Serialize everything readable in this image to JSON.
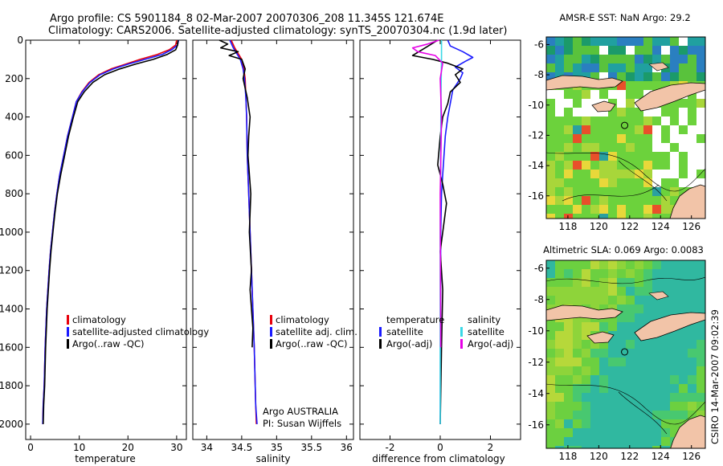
{
  "title": {
    "line1": "Argo profile: CS 5901184_8 02-Mar-2007 20070306_208 11.345S 121.674E",
    "line2": "Climatology: CARS2006. Satellite-adjusted climatology: synTS_20070304.nc (1.9d later)"
  },
  "side_label": "CSIRO 14-Mar-2007 09:02:39",
  "colors": {
    "red": "#e8000b",
    "blue": "#1a1aff",
    "black": "#000000",
    "cyan": "#3ad8e6",
    "magenta": "#e600e6"
  },
  "chart_data": [
    {
      "type": "line",
      "xlabel": "temperature",
      "xlim": [
        -1,
        32
      ],
      "ylim": [
        2080,
        0
      ],
      "xticks": [
        "0",
        "10",
        "20",
        "30"
      ],
      "xtick_values": [
        0,
        10,
        20,
        30
      ],
      "yticks": [
        "0",
        "200",
        "400",
        "600",
        "800",
        "1000",
        "1200",
        "1400",
        "1600",
        "1800",
        "2000"
      ],
      "ytick_values": [
        0,
        200,
        400,
        600,
        800,
        1000,
        1200,
        1400,
        1600,
        1800,
        2000
      ],
      "legend": [
        "climatology",
        "satellite-adjusted climatology",
        "Argo(..raw -QC)"
      ],
      "series": [
        {
          "name": "climatology",
          "color": "red",
          "x": [
            30,
            29.8,
            28.5,
            26,
            22.5,
            19.5,
            16.5,
            14,
            12,
            10.5,
            9.4,
            8.6,
            7.6,
            6.8,
            6.0,
            5.4,
            4.9,
            4.5,
            4.1,
            3.8,
            3.3,
            3.0,
            2.8,
            2.6,
            2.5
          ],
          "y": [
            0,
            25,
            50,
            75,
            100,
            125,
            150,
            180,
            220,
            270,
            320,
            400,
            500,
            600,
            700,
            800,
            900,
            1000,
            1100,
            1200,
            1400,
            1600,
            1800,
            1900,
            2000
          ]
        },
        {
          "name": "satellite-adjusted climatology",
          "color": "blue",
          "x": [
            30.4,
            30.2,
            29,
            27,
            23.5,
            20,
            17,
            14.3,
            12.2,
            10.6,
            9.4,
            8.6,
            7.6,
            6.8,
            6.0,
            5.4,
            4.9,
            4.5,
            4.1,
            3.8,
            3.3,
            3.0,
            2.8,
            2.6,
            2.5
          ],
          "y": [
            0,
            25,
            50,
            75,
            100,
            125,
            150,
            180,
            220,
            270,
            320,
            400,
            500,
            600,
            700,
            800,
            900,
            1000,
            1100,
            1200,
            1400,
            1600,
            1800,
            1900,
            2000
          ]
        },
        {
          "name": "Argo(..raw -QC)",
          "color": "black",
          "x": [
            30.3,
            30.2,
            29.8,
            28,
            25.2,
            21.5,
            18.3,
            15.2,
            12.8,
            11.0,
            9.7,
            8.8,
            7.8,
            7.0,
            6.2,
            5.5,
            5.0,
            4.6,
            4.2,
            3.9,
            3.4,
            3.1,
            2.9,
            2.7,
            2.6
          ],
          "y": [
            0,
            25,
            50,
            75,
            100,
            125,
            150,
            180,
            220,
            270,
            320,
            400,
            500,
            600,
            700,
            800,
            900,
            1000,
            1100,
            1200,
            1400,
            1600,
            1800,
            1900,
            2000
          ]
        }
      ]
    },
    {
      "type": "line",
      "xlabel": "salinity",
      "xlim": [
        33.8,
        36.1
      ],
      "ylim": [
        2080,
        0
      ],
      "xticks": [
        "34",
        "34.5",
        "35",
        "35.5",
        "36"
      ],
      "xtick_values": [
        34,
        34.5,
        35,
        35.5,
        36
      ],
      "legend": [
        "climatology",
        "satellite adj. clim.",
        "Argo(..raw -QC)"
      ],
      "annotations": [
        "Argo AUSTRALIA",
        "PI: Susan Wijffels"
      ],
      "series": [
        {
          "name": "climatology",
          "color": "red",
          "x": [
            34.35,
            34.4,
            34.45,
            34.5,
            34.53,
            34.55,
            34.56,
            34.57,
            34.58,
            34.6,
            34.62,
            34.65,
            34.68,
            34.7,
            34.71
          ],
          "y": [
            0,
            40,
            70,
            100,
            150,
            200,
            300,
            400,
            600,
            800,
            1000,
            1300,
            1600,
            1900,
            2000
          ]
        },
        {
          "name": "satellite adj. clim.",
          "color": "blue",
          "x": [
            34.33,
            34.38,
            34.43,
            34.48,
            34.52,
            34.54,
            34.56,
            34.57,
            34.58,
            34.6,
            34.62,
            34.65,
            34.68,
            34.7,
            34.72
          ],
          "y": [
            0,
            40,
            70,
            100,
            150,
            200,
            300,
            400,
            600,
            800,
            1000,
            1300,
            1600,
            1900,
            2000
          ]
        },
        {
          "name": "Argo(..raw -QC)",
          "color": "black",
          "x": [
            34.18,
            34.3,
            34.2,
            34.45,
            34.32,
            34.5,
            34.55,
            34.52,
            34.58,
            34.62,
            34.6,
            34.59,
            34.63,
            34.61,
            34.64,
            34.62,
            34.66,
            34.65
          ],
          "y": [
            0,
            20,
            40,
            60,
            80,
            100,
            150,
            200,
            300,
            400,
            500,
            600,
            800,
            1000,
            1200,
            1300,
            1500,
            1600
          ]
        }
      ]
    },
    {
      "type": "line",
      "xlabel": "difference from climatology",
      "xlim": [
        -3.2,
        3.2
      ],
      "ylim": [
        2080,
        0
      ],
      "xticks": [
        "-2",
        "0",
        "2"
      ],
      "xtick_values": [
        -2,
        0,
        2
      ],
      "legend_headers": [
        "temperature",
        "salinity"
      ],
      "legend": [
        "satellite",
        "Argo(-adj)",
        "satellite",
        "Argo(-adj)"
      ],
      "series": [
        {
          "name": "temperature satellite",
          "color": "blue",
          "x": [
            0.3,
            0.4,
            0.9,
            1.3,
            1.0,
            0.6,
            0.9,
            0.8,
            0.5,
            0.4,
            0.3,
            0.2,
            0.15,
            0.1,
            0.05,
            0.02,
            0
          ],
          "y": [
            0,
            30,
            60,
            90,
            110,
            140,
            170,
            200,
            260,
            330,
            400,
            500,
            600,
            700,
            800,
            1000,
            2000
          ]
        },
        {
          "name": "temperature Argo(-adj)",
          "color": "black",
          "x": [
            -0.1,
            -0.6,
            -1.1,
            -0.3,
            0.3,
            0.9,
            0.6,
            0.8,
            0.4,
            0.3,
            0.1,
            0,
            -0.1,
            0.1,
            0.25,
            0.15,
            0,
            0.1,
            0.05,
            0
          ],
          "y": [
            0,
            40,
            80,
            100,
            120,
            150,
            180,
            220,
            270,
            330,
            400,
            500,
            650,
            750,
            850,
            950,
            1100,
            1300,
            1600,
            2000
          ]
        },
        {
          "name": "salinity satellite",
          "color": "cyan",
          "x": [
            0.05,
            0.05,
            0.03,
            0.02,
            0,
            0
          ],
          "y": [
            0,
            100,
            300,
            600,
            1000,
            2000
          ]
        },
        {
          "name": "salinity Argo(-adj)",
          "color": "magenta",
          "x": [
            -0.05,
            -0.5,
            -1.1,
            -0.9,
            -0.2,
            0.1,
            0,
            0.05,
            0,
            0.02
          ],
          "y": [
            0,
            20,
            40,
            60,
            80,
            120,
            200,
            400,
            800,
            1600
          ]
        }
      ]
    }
  ],
  "maps": [
    {
      "title": "AMSR-E SST: NaN Argo: 29.2",
      "xticks": [
        "118",
        "120",
        "122",
        "124",
        "126"
      ],
      "xtick_values": [
        118,
        120,
        122,
        124,
        126
      ],
      "yticks": [
        "-6",
        "-8",
        "-10",
        "-12",
        "-14",
        "-16"
      ],
      "ytick_values": [
        -6,
        -8,
        -10,
        -12,
        -14,
        -16
      ],
      "lon_range": [
        116.6,
        126.9
      ],
      "lat_range": [
        -17.5,
        -5.5
      ],
      "argo_position": {
        "lon": 121.674,
        "lat": -11.345
      }
    },
    {
      "title": "Altimetric SLA: 0.069 Argo: 0.0083",
      "xticks": [
        "118",
        "120",
        "122",
        "124",
        "126"
      ],
      "xtick_values": [
        118,
        120,
        122,
        124,
        126
      ],
      "yticks": [
        "-6",
        "-8",
        "-10",
        "-12",
        "-14",
        "-16"
      ],
      "ytick_values": [
        -6,
        -8,
        -10,
        -12,
        -14,
        -16
      ],
      "lon_range": [
        116.6,
        126.9
      ],
      "lat_range": [
        -17.5,
        -5.5
      ],
      "argo_position": {
        "lon": 121.674,
        "lat": -11.345
      }
    }
  ]
}
